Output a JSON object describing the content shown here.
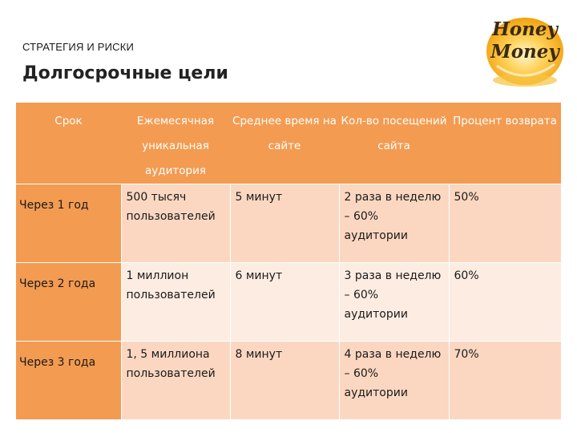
{
  "header": {
    "section_label": "СТРАТЕГИЯ И РИСКИ",
    "title": "Долгосрочные цели"
  },
  "logo": {
    "line1": "Honey",
    "line2": "Money",
    "colors": {
      "gold": "#f2b21e",
      "light": "#ffe9a8",
      "dark": "#3a2a10"
    }
  },
  "table": {
    "headers": [
      "Срок",
      "Ежемесячная уникальная аудитория",
      "Среднее время на сайте",
      "Кол-во посещений сайта",
      "Процент возврата"
    ],
    "rows": [
      [
        "Через 1 год",
        "500 тысяч пользователей",
        "5 минут",
        "2 раза в неделю – 60% аудитории",
        "50%"
      ],
      [
        "Через 2 года",
        "1 миллион пользователей",
        "6 минут",
        "3 раза в неделю – 60% аудитории",
        "60%"
      ],
      [
        "Через 3 года",
        "1, 5 миллиона пользователей",
        "8 минут",
        "4 раза в неделю – 60% аудитории",
        "70%"
      ]
    ]
  },
  "colors": {
    "header_orange": "#f39b51",
    "row_dark": "#fbd7c1",
    "row_light": "#fdece2"
  }
}
